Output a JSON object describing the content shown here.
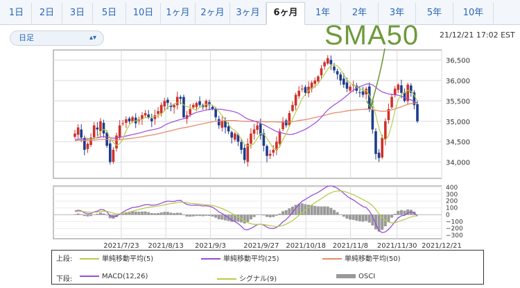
{
  "tabs": [
    {
      "label": "1日"
    },
    {
      "label": "2日"
    },
    {
      "label": "3日"
    },
    {
      "label": "5日"
    },
    {
      "label": "10日"
    },
    {
      "label": "1ヶ月"
    },
    {
      "label": "2ヶ月"
    },
    {
      "label": "3ヶ月"
    },
    {
      "label": "6ヶ月",
      "active": true
    },
    {
      "label": "1年"
    },
    {
      "label": "2年"
    },
    {
      "label": "3年"
    },
    {
      "label": "5年"
    },
    {
      "label": "10年"
    }
  ],
  "period_select": {
    "value": "日足"
  },
  "timestamp": "21/12/21 17:02 EST",
  "annotation": {
    "text": "SMA50"
  },
  "colors": {
    "up": "#d0302a",
    "down": "#1e3c8c",
    "sma5": "#b5cc4a",
    "sma25": "#9a4bd9",
    "sma50": "#e88a6a",
    "macd": "#9a4bd9",
    "signal": "#b5cc4a",
    "osci": "#999999",
    "annotation": "#6d9a3b"
  },
  "legend": {
    "upper_label": "上段:",
    "lower_label": "下段:",
    "upper": [
      {
        "label": "単純移動平均(5)"
      },
      {
        "label": "単純移動平均(25)"
      },
      {
        "label": "単純移動平均(50)"
      }
    ],
    "lower": [
      {
        "label": "MACD(12,26)"
      },
      {
        "label": "シグナル(9)"
      },
      {
        "label": "OSCI"
      }
    ]
  },
  "chart_data": [
    {
      "type": "candlestick",
      "y_axis_ticks": [
        "34,000",
        "34,500",
        "35,000",
        "35,500",
        "36,000",
        "36,500"
      ],
      "ylim": [
        33600,
        36750
      ],
      "x_tick_labels": [
        "2021/7/23",
        "2021/8/13",
        "2021/9/3",
        "2021/9/27",
        "2021/10/18",
        "2021/11/8",
        "2021/11/30",
        "2021/12/21"
      ],
      "x_range": [
        "2021/6/21",
        "2021/12/21"
      ],
      "grid": true,
      "close": [
        34700,
        34850,
        34600,
        34300,
        34450,
        34600,
        34900,
        34800,
        35000,
        34700,
        34400,
        34000,
        34300,
        34650,
        34900,
        34950,
        35050,
        35000,
        35100,
        34950,
        35050,
        35150,
        35200,
        35100,
        35000,
        35150,
        35250,
        35400,
        35500,
        35450,
        35350,
        35400,
        35600,
        35550,
        35100,
        35150,
        35300,
        35400,
        35450,
        35400,
        35350,
        35500,
        35400,
        35300,
        35100,
        34900,
        35000,
        34850,
        34750,
        34600,
        34700,
        34500,
        34300,
        34050,
        34450,
        34700,
        34800,
        34900,
        34650,
        34400,
        34150,
        34200,
        34300,
        34500,
        34750,
        35000,
        34900,
        35200,
        35400,
        35650,
        35750,
        35800,
        35700,
        35850,
        35950,
        36000,
        36100,
        36300,
        36450,
        36550,
        36400,
        36250,
        36150,
        36000,
        35900,
        35800,
        35850,
        35900,
        35750,
        35700,
        35650,
        35800,
        35300,
        34800,
        34200,
        34100,
        34600,
        35000,
        35300,
        35600,
        35800,
        35900,
        35700,
        35500,
        35900,
        35700,
        35400,
        35000
      ]
    },
    {
      "type": "line",
      "ylim": [
        -350,
        420
      ],
      "y_axis_ticks": [
        "400",
        "300",
        "200",
        "100",
        "0",
        "−100",
        "−200",
        "−300"
      ],
      "series": [
        {
          "name": "MACD(12,26)"
        },
        {
          "name": "シグナル(9)"
        },
        {
          "name": "OSCI"
        }
      ]
    }
  ]
}
